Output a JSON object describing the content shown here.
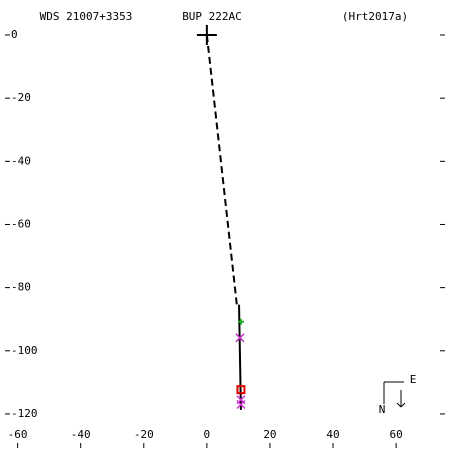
{
  "chart_data": {
    "type": "scatter",
    "title": "WDS 21007+3353",
    "subtitle": "BUP 222AC",
    "reference": "(Hrt2017a)",
    "compass": {
      "north": "N",
      "east": "E"
    },
    "xlim": [
      -64,
      75.5
    ],
    "ylim": [
      -123.5,
      9.5
    ],
    "xticks": [
      -60,
      -40,
      -20,
      0,
      20,
      40,
      60
    ],
    "yticks": [
      0,
      -20,
      -40,
      -60,
      -80,
      -100,
      -120
    ],
    "series": [
      {
        "color": "#000000",
        "line": "dashed",
        "marker": "none",
        "x": [
          0,
          9.5
        ],
        "y": [
          0,
          -85.4
        ]
      },
      {
        "color": "#000000",
        "line": "solid",
        "marker": "none",
        "x": [
          10.2,
          10.8
        ],
        "y": [
          -85.4,
          -118.7
        ]
      },
      {
        "color": "#000000",
        "line": "none",
        "marker": "plus",
        "x": [
          0
        ],
        "y": [
          0
        ]
      },
      {
        "color": "#22aa22",
        "line": "none",
        "marker": "plus",
        "x": [
          10.8
        ],
        "y": [
          -90.8
        ]
      },
      {
        "color": "#cc33cc",
        "line": "none",
        "marker": "cross",
        "x": [
          10.5,
          10.8,
          10.8
        ],
        "y": [
          -95.9,
          -115.5,
          -117
        ]
      },
      {
        "color": "#dd0000",
        "line": "none",
        "marker": "square",
        "x": [
          10.8
        ],
        "y": [
          -112.3
        ]
      }
    ]
  }
}
